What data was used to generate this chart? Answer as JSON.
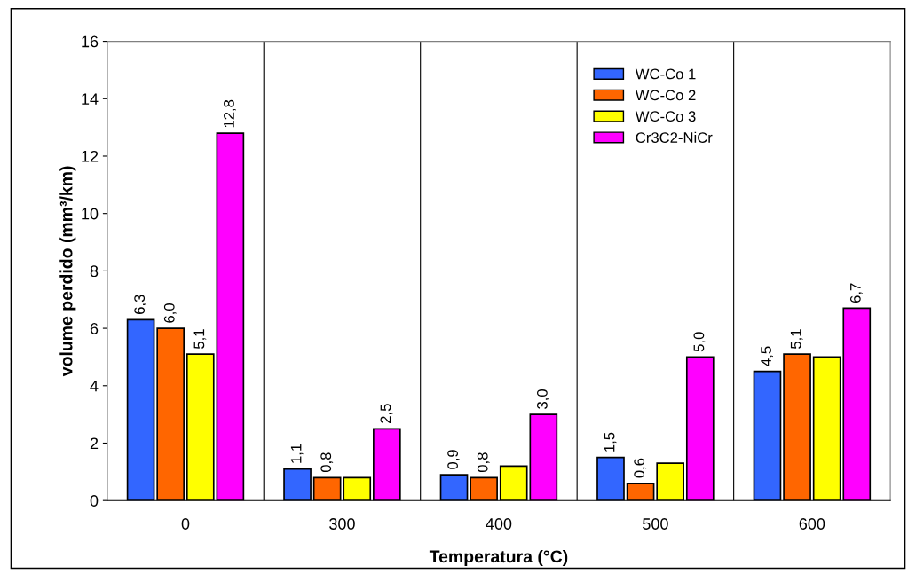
{
  "chart_data": {
    "type": "bar",
    "xlabel": "Temperatura (°C)",
    "ylabel": "volume perdido (mm³/km)",
    "categories": [
      "0",
      "300",
      "400",
      "500",
      "600"
    ],
    "series": [
      {
        "name": "WC-Co 1",
        "color": "#3366ff",
        "values": [
          6.3,
          1.1,
          0.9,
          1.5,
          4.5
        ],
        "value_labels": [
          "6,3",
          "1,1",
          "0,9",
          "1,5",
          "4,5"
        ]
      },
      {
        "name": "WC-Co 2",
        "color": "#ff6600",
        "values": [
          6.0,
          0.8,
          0.8,
          0.6,
          5.1
        ],
        "value_labels": [
          "6,0",
          "0,8",
          "0,8",
          "0,6",
          "5,1"
        ]
      },
      {
        "name": "WC-Co 3",
        "color": "#ffff00",
        "values": [
          5.1,
          0.8,
          1.2,
          1.3,
          5.0
        ],
        "value_labels": [
          "5,1",
          null,
          null,
          null,
          null
        ]
      },
      {
        "name": "Cr3C2-NiCr",
        "color": "#ff00ff",
        "values": [
          12.8,
          2.5,
          3.0,
          5.0,
          6.7
        ],
        "value_labels": [
          "12,8",
          "2,5",
          "3,0",
          "5,0",
          "6,7"
        ]
      }
    ],
    "ylim": [
      0,
      16
    ],
    "yticks": [
      0,
      2,
      4,
      6,
      8,
      10,
      12,
      14,
      16
    ],
    "grid": "x",
    "legend": "top right"
  }
}
